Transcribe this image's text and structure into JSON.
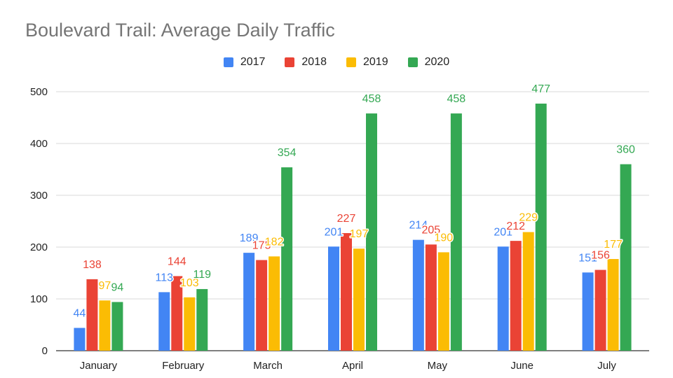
{
  "chart_data": {
    "type": "bar",
    "title": "Boulevard Trail: Average Daily Traffic",
    "xlabel": "",
    "ylabel": "",
    "ylim": [
      0,
      500
    ],
    "yticks": [
      "0",
      "100",
      "200",
      "300",
      "400",
      "500"
    ],
    "categories": [
      "January",
      "February",
      "March",
      "April",
      "May",
      "June",
      "July"
    ],
    "grid": true,
    "legend_position": "top",
    "series": [
      {
        "name": "2017",
        "color": "#4285F4",
        "values": [
          44,
          113,
          189,
          201,
          214,
          201,
          151
        ]
      },
      {
        "name": "2018",
        "color": "#EA4335",
        "values": [
          138,
          144,
          175,
          227,
          205,
          212,
          156
        ]
      },
      {
        "name": "2019",
        "color": "#FBBC04",
        "values": [
          97,
          103,
          182,
          197,
          190,
          229,
          177
        ]
      },
      {
        "name": "2020",
        "color": "#34A853",
        "values": [
          94,
          119,
          354,
          458,
          458,
          477,
          360
        ]
      }
    ]
  }
}
